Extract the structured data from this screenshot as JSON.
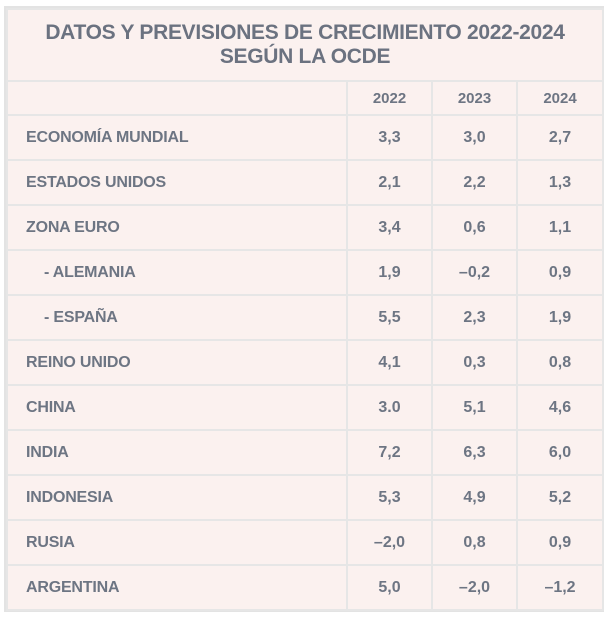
{
  "chart_data": {
    "type": "table",
    "title": [
      "DATOS Y PREVISIONES DE CRECIMIENTO 2022-2024",
      "SEGÚN LA OCDE"
    ],
    "columns": [
      "",
      "2022",
      "2023",
      "2024"
    ],
    "rows": [
      {
        "label": "ECONOMÍA MUNDIAL",
        "indent": false,
        "values": [
          "3,3",
          "3,0",
          "2,7"
        ]
      },
      {
        "label": "ESTADOS UNIDOS",
        "indent": false,
        "values": [
          "2,1",
          "2,2",
          "1,3"
        ]
      },
      {
        "label": "ZONA EURO",
        "indent": false,
        "values": [
          "3,4",
          "0,6",
          "1,1"
        ]
      },
      {
        "label": "- ALEMANIA",
        "indent": true,
        "values": [
          "1,9",
          "–0,2",
          "0,9"
        ]
      },
      {
        "label": "- ESPAÑA",
        "indent": true,
        "values": [
          "5,5",
          "2,3",
          "1,9"
        ]
      },
      {
        "label": "REINO UNIDO",
        "indent": false,
        "values": [
          "4,1",
          "0,3",
          "0,8"
        ]
      },
      {
        "label": "CHINA",
        "indent": false,
        "values": [
          "3.0",
          "5,1",
          "4,6"
        ]
      },
      {
        "label": "INDIA",
        "indent": false,
        "values": [
          "7,2",
          "6,3",
          "6,0"
        ]
      },
      {
        "label": "INDONESIA",
        "indent": false,
        "values": [
          "5,3",
          "4,9",
          "5,2"
        ]
      },
      {
        "label": "RUSIA",
        "indent": false,
        "values": [
          "–2,0",
          "0,8",
          "0,9"
        ]
      },
      {
        "label": "ARGENTINA",
        "indent": false,
        "values": [
          "5,0",
          "–2,0",
          "–1,2"
        ]
      }
    ]
  },
  "colors": {
    "background": "#fbf1ef",
    "grid": "#e6e6e6",
    "text": "#6d7583"
  }
}
